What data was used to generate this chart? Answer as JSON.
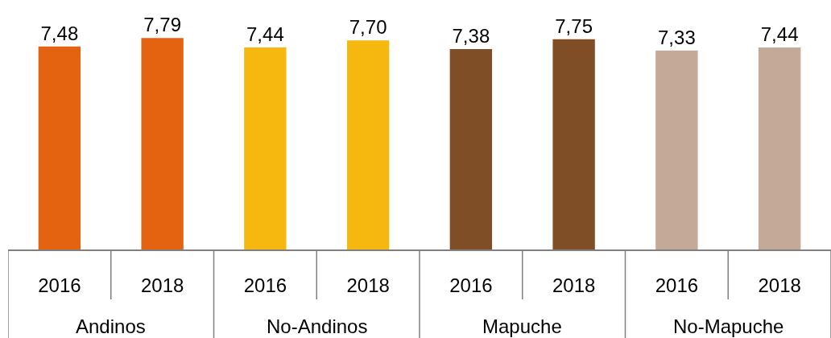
{
  "chart_data": {
    "type": "bar",
    "categories": [
      "2016",
      "2018",
      "2016",
      "2018",
      "2016",
      "2018",
      "2016",
      "2018"
    ],
    "values": [
      7.48,
      7.79,
      7.44,
      7.7,
      7.38,
      7.75,
      7.33,
      7.44
    ],
    "value_labels": [
      "7,48",
      "7,79",
      "7,44",
      "7,70",
      "7,38",
      "7,75",
      "7,33",
      "7,44"
    ],
    "colors": [
      "#e46311",
      "#e46311",
      "#f6b80f",
      "#f6b80f",
      "#7f4e27",
      "#7f4e27",
      "#c4a898",
      "#c4a898"
    ],
    "annotations": [
      "Andinos",
      "No-Andinos",
      "Mapuche",
      "No-Mapuche"
    ]
  }
}
